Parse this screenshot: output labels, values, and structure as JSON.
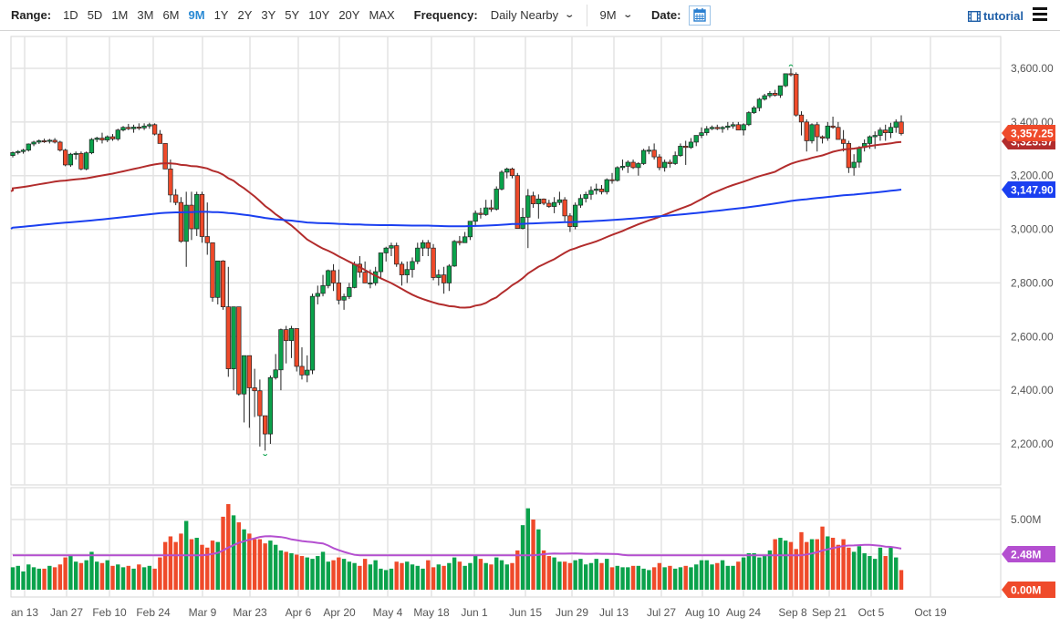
{
  "toolbar": {
    "range_label": "Range:",
    "ranges": [
      "1D",
      "5D",
      "1M",
      "3M",
      "6M",
      "9M",
      "1Y",
      "2Y",
      "3Y",
      "5Y",
      "10Y",
      "20Y",
      "MAX"
    ],
    "active_range": "9M",
    "frequency_label": "Frequency:",
    "frequency_value": "Daily Nearby",
    "period_value": "9M",
    "date_label": "Date:",
    "tutorial_label": "tutorial"
  },
  "colors": {
    "up": "#0aa24b",
    "down": "#ef4a2a",
    "ma_short": "#b22c2c",
    "ma_long": "#1a3ff0",
    "vol_ma": "#b44fd0",
    "active_range": "#2a8ad4",
    "grid": "#e3e3e3"
  },
  "chart_data": {
    "type": "candlestick",
    "title": "",
    "price_axis": {
      "ticks": [
        "3,600.00",
        "3,400.00",
        "3,200.00",
        "3,000.00",
        "2,800.00",
        "2,600.00",
        "2,400.00",
        "2,200.00"
      ],
      "tick_values": [
        3600,
        3400,
        3200,
        3000,
        2800,
        2600,
        2400,
        2200
      ],
      "range": [
        2140,
        3650
      ]
    },
    "volume_axis": {
      "ticks": [
        "5.00M"
      ],
      "range": [
        0,
        6.6
      ]
    },
    "x_ticks": [
      "an 13",
      "Jan 27",
      "Feb 10",
      "Feb 24",
      "Mar 9",
      "Mar 23",
      "Apr 6",
      "Apr 20",
      "May 4",
      "May 18",
      "Jun 1",
      "Jun 15",
      "Jun 29",
      "Jul 13",
      "Jul 27",
      "Aug 10",
      "Aug 24",
      "Sep 8",
      "Sep 21",
      "Oct 5",
      "Oct 19"
    ],
    "x_tick_pos": [
      27,
      73,
      120,
      168,
      222,
      274,
      327,
      372,
      425,
      473,
      520,
      576,
      627,
      673,
      725,
      770,
      815,
      869,
      909,
      955,
      1020
    ],
    "price_tags": [
      {
        "label": "3,357.25",
        "value": 3357.25,
        "color": "#ef4a2a",
        "name": "last-price"
      },
      {
        "label": "3,325.57",
        "value": 3325.57,
        "color": "#b22c2c",
        "name": "ma-short"
      },
      {
        "label": "3,147.90",
        "value": 3147.9,
        "color": "#1a3ff0",
        "name": "ma-long"
      }
    ],
    "volume_tags": [
      {
        "label": "2.48M",
        "value": 2.48,
        "color": "#b44fd0",
        "name": "vol-ma"
      },
      {
        "label": "0.00M",
        "value": 0.0,
        "color": "#ef4a2a",
        "name": "volume-last"
      }
    ],
    "ohlc_note": "daily candles [open, high, low, close, volume(M)] estimated from pixels",
    "ohlc": [
      [
        3275,
        3290,
        3268,
        3286,
        1.6
      ],
      [
        3286,
        3295,
        3279,
        3290,
        1.7
      ],
      [
        3290,
        3300,
        3282,
        3295,
        1.3
      ],
      [
        3295,
        3320,
        3290,
        3318,
        1.8
      ],
      [
        3318,
        3330,
        3310,
        3325,
        1.6
      ],
      [
        3325,
        3335,
        3318,
        3330,
        1.5
      ],
      [
        3330,
        3338,
        3322,
        3329,
        1.5
      ],
      [
        3329,
        3337,
        3320,
        3332,
        1.7
      ],
      [
        3332,
        3340,
        3320,
        3325,
        1.6
      ],
      [
        3325,
        3330,
        3290,
        3295,
        1.8
      ],
      [
        3295,
        3300,
        3235,
        3240,
        2.3
      ],
      [
        3240,
        3285,
        3233,
        3280,
        2.4
      ],
      [
        3280,
        3290,
        3260,
        3283,
        2.0
      ],
      [
        3283,
        3290,
        3220,
        3225,
        1.9
      ],
      [
        3225,
        3290,
        3220,
        3285,
        2.1
      ],
      [
        3285,
        3340,
        3280,
        3335,
        2.7
      ],
      [
        3335,
        3345,
        3325,
        3340,
        2.0
      ],
      [
        3340,
        3360,
        3320,
        3333,
        1.9
      ],
      [
        3333,
        3350,
        3325,
        3345,
        2.1
      ],
      [
        3345,
        3355,
        3330,
        3337,
        1.7
      ],
      [
        3337,
        3375,
        3330,
        3370,
        1.8
      ],
      [
        3370,
        3385,
        3365,
        3380,
        1.6
      ],
      [
        3380,
        3393,
        3370,
        3375,
        1.7
      ],
      [
        3375,
        3390,
        3360,
        3381,
        1.5
      ],
      [
        3381,
        3395,
        3370,
        3378,
        1.8
      ],
      [
        3378,
        3395,
        3370,
        3385,
        1.6
      ],
      [
        3385,
        3397,
        3375,
        3390,
        1.7
      ],
      [
        3390,
        3395,
        3350,
        3355,
        1.5
      ],
      [
        3355,
        3370,
        3320,
        3320,
        2.3
      ],
      [
        3320,
        3320,
        3225,
        3225,
        3.4
      ],
      [
        3225,
        3260,
        3100,
        3128,
        3.8
      ],
      [
        3128,
        3150,
        3090,
        3100,
        3.4
      ],
      [
        3100,
        3120,
        2950,
        2955,
        4.0
      ],
      [
        2955,
        3140,
        2860,
        3090,
        4.9
      ],
      [
        3090,
        3140,
        2960,
        3002,
        3.6
      ],
      [
        3002,
        3140,
        2975,
        3130,
        3.7
      ],
      [
        3130,
        3140,
        2950,
        2973,
        3.2
      ],
      [
        2973,
        3100,
        2905,
        2950,
        3.0
      ],
      [
        2950,
        2950,
        2730,
        2746,
        3.5
      ],
      [
        2746,
        2880,
        2720,
        2882,
        3.4
      ],
      [
        2882,
        2885,
        2700,
        2711,
        5.2
      ],
      [
        2711,
        2860,
        2450,
        2480,
        6.1
      ],
      [
        2480,
        2700,
        2400,
        2711,
        5.3
      ],
      [
        2711,
        2710,
        2380,
        2386,
        4.8
      ],
      [
        2386,
        2500,
        2280,
        2529,
        4.3
      ],
      [
        2529,
        2510,
        2260,
        2409,
        4.0
      ],
      [
        2409,
        2480,
        2300,
        2398,
        3.6
      ],
      [
        2398,
        2440,
        2190,
        2305,
        3.6
      ],
      [
        2305,
        2300,
        2175,
        2237,
        3.3
      ],
      [
        2237,
        2455,
        2200,
        2447,
        3.5
      ],
      [
        2447,
        2535,
        2440,
        2476,
        3.2
      ],
      [
        2476,
        2630,
        2400,
        2626,
        2.8
      ],
      [
        2626,
        2640,
        2500,
        2585,
        2.7
      ],
      [
        2585,
        2640,
        2520,
        2630,
        2.6
      ],
      [
        2630,
        2600,
        2470,
        2489,
        2.5
      ],
      [
        2489,
        2560,
        2440,
        2457,
        2.4
      ],
      [
        2457,
        2530,
        2430,
        2475,
        2.3
      ],
      [
        2475,
        2760,
        2460,
        2750,
        2.2
      ],
      [
        2750,
        2790,
        2720,
        2761,
        2.4
      ],
      [
        2761,
        2830,
        2750,
        2790,
        2.7
      ],
      [
        2790,
        2850,
        2780,
        2846,
        2.0
      ],
      [
        2846,
        2870,
        2770,
        2800,
        2.1
      ],
      [
        2800,
        2850,
        2720,
        2736,
        2.3
      ],
      [
        2736,
        2760,
        2700,
        2749,
        2.2
      ],
      [
        2749,
        2800,
        2740,
        2783,
        2.0
      ],
      [
        2783,
        2880,
        2780,
        2870,
        1.9
      ],
      [
        2870,
        2900,
        2820,
        2840,
        1.7
      ],
      [
        2840,
        2880,
        2820,
        2800,
        2.2
      ],
      [
        2800,
        2850,
        2780,
        2800,
        1.8
      ],
      [
        2800,
        2860,
        2790,
        2842,
        2.1
      ],
      [
        2842,
        2900,
        2820,
        2912,
        1.5
      ],
      [
        2912,
        2935,
        2880,
        2930,
        1.4
      ],
      [
        2930,
        2950,
        2900,
        2939,
        1.5
      ],
      [
        2939,
        2950,
        2860,
        2870,
        2.0
      ],
      [
        2870,
        2880,
        2790,
        2830,
        1.9
      ],
      [
        2830,
        2880,
        2800,
        2850,
        2.0
      ],
      [
        2850,
        2895,
        2820,
        2880,
        1.8
      ],
      [
        2880,
        2950,
        2870,
        2930,
        1.7
      ],
      [
        2930,
        2960,
        2900,
        2950,
        1.5
      ],
      [
        2950,
        2960,
        2900,
        2930,
        2.1
      ],
      [
        2930,
        2945,
        2810,
        2820,
        1.6
      ],
      [
        2820,
        2850,
        2790,
        2830,
        1.8
      ],
      [
        2830,
        2860,
        2760,
        2800,
        1.7
      ],
      [
        2800,
        2870,
        2770,
        2863,
        1.9
      ],
      [
        2863,
        2960,
        2860,
        2955,
        2.3
      ],
      [
        2955,
        2975,
        2940,
        2950,
        2.0
      ],
      [
        2950,
        2990,
        2950,
        2972,
        1.7
      ],
      [
        2972,
        3030,
        2960,
        3030,
        1.9
      ],
      [
        3030,
        3070,
        3010,
        3060,
        2.5
      ],
      [
        3060,
        3080,
        3040,
        3055,
        2.2
      ],
      [
        3055,
        3110,
        3050,
        3080,
        1.9
      ],
      [
        3080,
        3110,
        3065,
        3075,
        1.8
      ],
      [
        3075,
        3160,
        3070,
        3150,
        2.3
      ],
      [
        3150,
        3220,
        3145,
        3213,
        2.1
      ],
      [
        3213,
        3230,
        3190,
        3225,
        1.8
      ],
      [
        3225,
        3230,
        3190,
        3200,
        1.9
      ],
      [
        3200,
        3210,
        3010,
        3003,
        2.8
      ],
      [
        3003,
        3080,
        3000,
        3045,
        4.6
      ],
      [
        3045,
        3150,
        2930,
        3125,
        5.8
      ],
      [
        3125,
        3140,
        3080,
        3095,
        5.0
      ],
      [
        3095,
        3130,
        3040,
        3113,
        4.3
      ],
      [
        3113,
        3115,
        3090,
        3097,
        2.8
      ],
      [
        3097,
        3110,
        3080,
        3085,
        2.4
      ],
      [
        3085,
        3120,
        3060,
        3100,
        2.3
      ],
      [
        3100,
        3140,
        3090,
        3110,
        2.0
      ],
      [
        3110,
        3120,
        3030,
        3050,
        2.0
      ],
      [
        3050,
        3060,
        2990,
        3010,
        1.9
      ],
      [
        3010,
        3100,
        3000,
        3090,
        2.1
      ],
      [
        3090,
        3130,
        3080,
        3115,
        2.2
      ],
      [
        3115,
        3140,
        3100,
        3130,
        1.8
      ],
      [
        3130,
        3160,
        3110,
        3145,
        1.9
      ],
      [
        3145,
        3170,
        3130,
        3150,
        2.2
      ],
      [
        3150,
        3165,
        3130,
        3140,
        1.9
      ],
      [
        3140,
        3190,
        3130,
        3185,
        2.2
      ],
      [
        3185,
        3210,
        3170,
        3182,
        1.6
      ],
      [
        3182,
        3235,
        3178,
        3230,
        1.7
      ],
      [
        3230,
        3260,
        3220,
        3235,
        1.6
      ],
      [
        3235,
        3257,
        3210,
        3250,
        1.6
      ],
      [
        3250,
        3260,
        3225,
        3230,
        1.7
      ],
      [
        3230,
        3250,
        3200,
        3245,
        1.7
      ],
      [
        3245,
        3300,
        3240,
        3294,
        1.5
      ],
      [
        3294,
        3310,
        3280,
        3295,
        1.4
      ],
      [
        3295,
        3320,
        3260,
        3270,
        1.6
      ],
      [
        3270,
        3280,
        3220,
        3230,
        1.9
      ],
      [
        3230,
        3260,
        3215,
        3250,
        1.6
      ],
      [
        3250,
        3260,
        3230,
        3245,
        1.7
      ],
      [
        3245,
        3290,
        3240,
        3275,
        1.5
      ],
      [
        3275,
        3320,
        3270,
        3310,
        1.6
      ],
      [
        3310,
        3330,
        3240,
        3305,
        1.7
      ],
      [
        3305,
        3340,
        3300,
        3325,
        1.6
      ],
      [
        3325,
        3350,
        3310,
        3350,
        1.8
      ],
      [
        3350,
        3380,
        3340,
        3360,
        2.1
      ],
      [
        3360,
        3385,
        3350,
        3375,
        2.1
      ],
      [
        3375,
        3387,
        3370,
        3380,
        1.8
      ],
      [
        3380,
        3390,
        3370,
        3375,
        1.9
      ],
      [
        3375,
        3385,
        3360,
        3380,
        2.1
      ],
      [
        3380,
        3400,
        3370,
        3385,
        1.7
      ],
      [
        3385,
        3400,
        3375,
        3390,
        1.7
      ],
      [
        3390,
        3400,
        3370,
        3370,
        2.0
      ],
      [
        3370,
        3395,
        3350,
        3390,
        2.3
      ],
      [
        3390,
        3440,
        3385,
        3435,
        2.6
      ],
      [
        3435,
        3460,
        3430,
        3453,
        2.6
      ],
      [
        3453,
        3490,
        3440,
        3485,
        2.3
      ],
      [
        3485,
        3505,
        3480,
        3498,
        2.4
      ],
      [
        3498,
        3515,
        3490,
        3507,
        2.8
      ],
      [
        3507,
        3520,
        3495,
        3500,
        3.6
      ],
      [
        3500,
        3525,
        3490,
        3535,
        3.7
      ],
      [
        3535,
        3580,
        3530,
        3580,
        3.5
      ],
      [
        3580,
        3600,
        3570,
        3578,
        3.4
      ],
      [
        3578,
        3585,
        3420,
        3426,
        2.9
      ],
      [
        3426,
        3440,
        3350,
        3400,
        4.1
      ],
      [
        3400,
        3410,
        3290,
        3330,
        3.4
      ],
      [
        3330,
        3395,
        3320,
        3390,
        3.6
      ],
      [
        3390,
        3400,
        3290,
        3345,
        3.6
      ],
      [
        3345,
        3350,
        3320,
        3340,
        4.5
      ],
      [
        3340,
        3400,
        3330,
        3385,
        3.8
      ],
      [
        3385,
        3420,
        3375,
        3380,
        3.7
      ],
      [
        3380,
        3400,
        3340,
        3335,
        3.2
      ],
      [
        3335,
        3370,
        3290,
        3320,
        3.6
      ],
      [
        3320,
        3330,
        3210,
        3230,
        3.0
      ],
      [
        3230,
        3280,
        3200,
        3250,
        2.7
      ],
      [
        3250,
        3310,
        3230,
        3305,
        3.1
      ],
      [
        3305,
        3335,
        3290,
        3320,
        2.6
      ],
      [
        3320,
        3350,
        3300,
        3345,
        2.4
      ],
      [
        3345,
        3365,
        3300,
        3350,
        2.2
      ],
      [
        3350,
        3380,
        3330,
        3370,
        3.0
      ],
      [
        3370,
        3390,
        3330,
        3360,
        2.4
      ],
      [
        3360,
        3397,
        3340,
        3380,
        3.0
      ],
      [
        3380,
        3410,
        3360,
        3400,
        2.3
      ],
      [
        3400,
        3425,
        3350,
        3357,
        1.4
      ]
    ],
    "ma_short_values_note": "50-day moving average (red)",
    "ma_long_values_note": "200-day moving average (blue)"
  }
}
